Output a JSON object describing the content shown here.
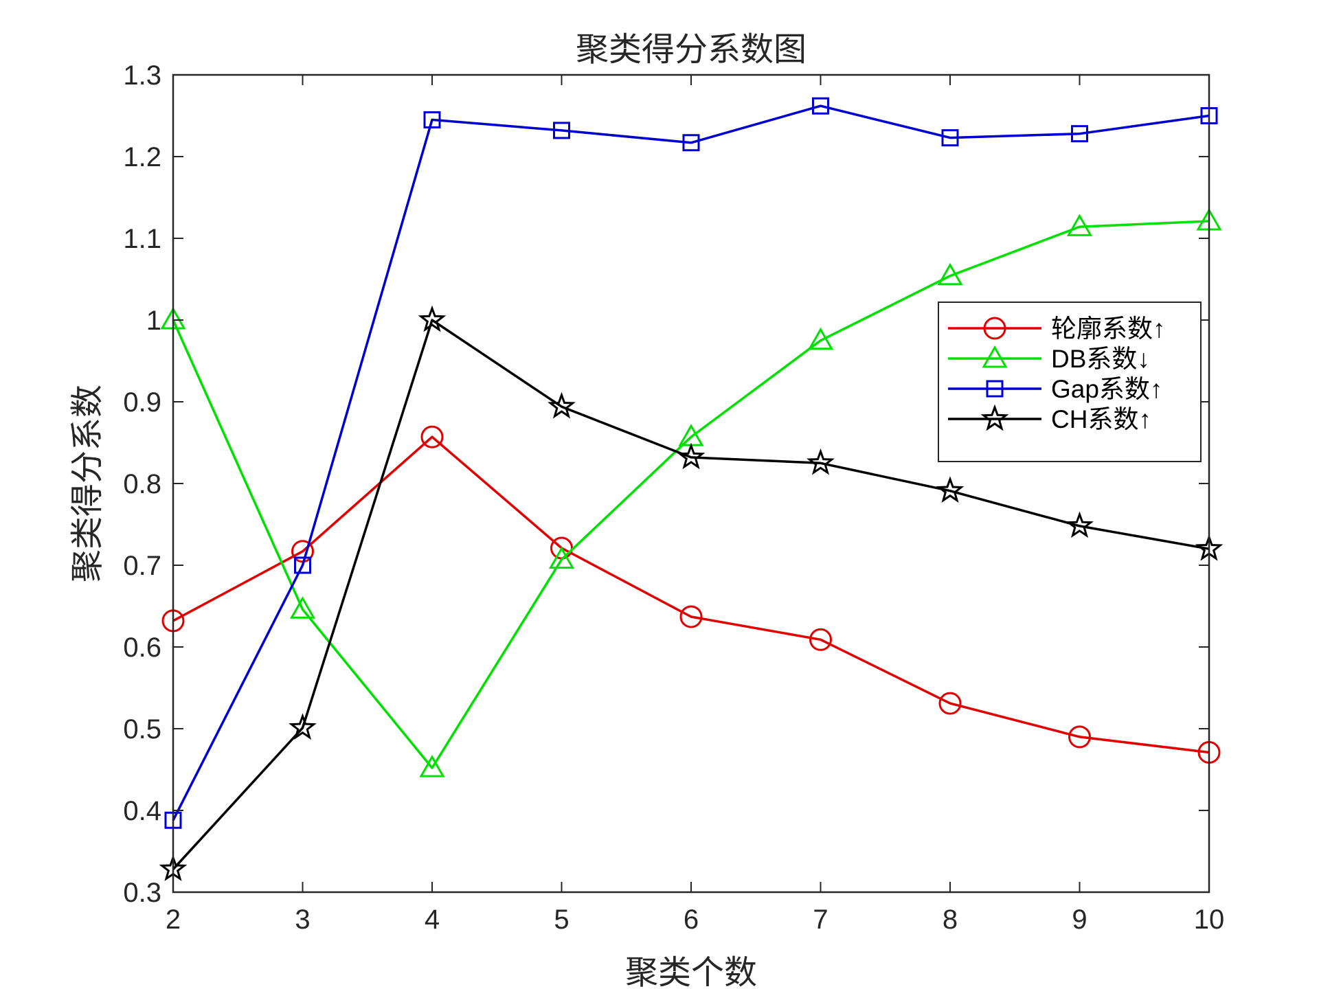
{
  "chart_data": {
    "type": "line",
    "title": "聚类得分系数图",
    "xlabel": "聚类个数",
    "ylabel": "聚类得分系数",
    "x": [
      2,
      3,
      4,
      5,
      6,
      7,
      8,
      9,
      10
    ],
    "xlim": [
      2,
      10
    ],
    "ylim": [
      0.3,
      1.3
    ],
    "xticks": [
      "2",
      "3",
      "4",
      "5",
      "6",
      "7",
      "8",
      "9",
      "10"
    ],
    "yticks": [
      "0.3",
      "0.4",
      "0.5",
      "0.6",
      "0.7",
      "0.8",
      "0.9",
      "1",
      "1.1",
      "1.2",
      "1.3"
    ],
    "grid": false,
    "legend_position": "right",
    "series": [
      {
        "name": "轮廓系数↑",
        "marker": "circle",
        "color": "#e00000",
        "values": [
          0.632,
          0.717,
          0.857,
          0.721,
          0.637,
          0.609,
          0.531,
          0.49,
          0.471
        ]
      },
      {
        "name": "DB系数↓",
        "marker": "triangle",
        "color": "#00e000",
        "values": [
          1.0,
          0.646,
          0.452,
          0.707,
          0.857,
          0.975,
          1.054,
          1.114,
          1.121
        ]
      },
      {
        "name": "Gap系数↑",
        "marker": "square",
        "color": "#0000d0",
        "values": [
          0.388,
          0.7,
          1.245,
          1.232,
          1.217,
          1.262,
          1.223,
          1.228,
          1.25
        ]
      },
      {
        "name": "CH系数↑",
        "marker": "star",
        "color": "#000000",
        "values": [
          0.328,
          0.501,
          1.0,
          0.894,
          0.832,
          0.825,
          0.791,
          0.748,
          0.72
        ]
      }
    ]
  }
}
